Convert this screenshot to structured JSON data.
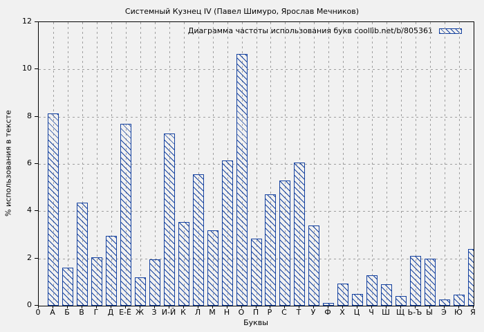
{
  "chart_data": {
    "type": "bar",
    "title": "Системный Кузнец IV (Павел Шимуро, Ярослав Мечников)",
    "legend_label": "Диаграмма частоты использования букв coollib.net/b/805361",
    "legend_position": "top-right-inside",
    "xlabel": "Буквы",
    "ylabel": "% использования в тексте",
    "x_origin_label": "0",
    "ylim": [
      0,
      12
    ],
    "yticks": [
      0,
      2,
      4,
      6,
      8,
      10,
      12
    ],
    "grid": true,
    "categories": [
      "А",
      "Б",
      "В",
      "Г",
      "Д",
      "Е-Ё",
      "Ж",
      "З",
      "И-Й",
      "К",
      "Л",
      "М",
      "Н",
      "О",
      "П",
      "Р",
      "С",
      "Т",
      "У",
      "Ф",
      "Х",
      "Ц",
      "Ч",
      "Ш",
      "Щ",
      "Ь-Ъ",
      "Ы",
      "Э",
      "Ю",
      "Я"
    ],
    "values": [
      8.15,
      1.6,
      4.35,
      2.05,
      2.95,
      7.7,
      1.2,
      1.95,
      7.3,
      3.55,
      5.55,
      3.2,
      6.15,
      10.65,
      2.85,
      4.7,
      5.3,
      6.05,
      3.4,
      0.12,
      0.95,
      0.5,
      1.3,
      0.9,
      0.4,
      2.1,
      2.0,
      0.27,
      0.48,
      2.4
    ],
    "bar_style": {
      "outline_color": "#14419f",
      "hatch": "diagonal-down",
      "fill": "transparent"
    },
    "colors": {
      "background": "#f1f1f1",
      "grid": "#9e9e9e",
      "axis": "#000000",
      "text": "#000000",
      "accent": "#14419f"
    }
  }
}
